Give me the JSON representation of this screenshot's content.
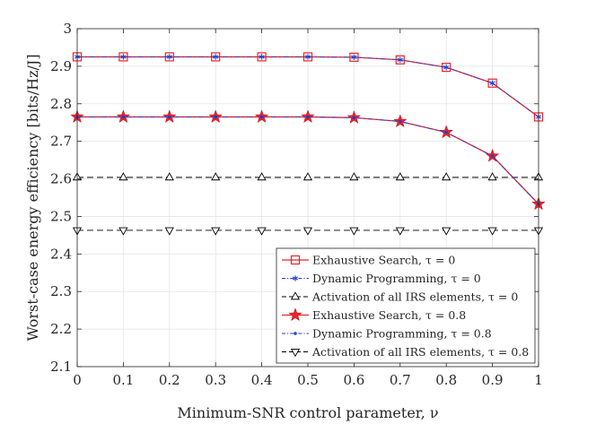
{
  "chart_data": {
    "type": "line",
    "title": "",
    "xlabel": "Minimum-SNR control parameter, ν",
    "ylabel": "Worst-case energy efficiency [bits/Hz/J]",
    "xlim": [
      0,
      1
    ],
    "ylim": [
      2.1,
      3.0
    ],
    "x_ticks": [
      0,
      0.1,
      0.2,
      0.3,
      0.4,
      0.5,
      0.6,
      0.7,
      0.8,
      0.9,
      1
    ],
    "x_tick_labels": [
      "0",
      "0.1",
      "0.2",
      "0.3",
      "0.4",
      "0.5",
      "0.6",
      "0.7",
      "0.8",
      "0.9",
      "1"
    ],
    "y_ticks": [
      2.1,
      2.2,
      2.3,
      2.4,
      2.5,
      2.6,
      2.7,
      2.8,
      2.9,
      3.0
    ],
    "y_tick_labels": [
      "2.1",
      "2.2",
      "2.3",
      "2.4",
      "2.5",
      "2.6",
      "2.7",
      "2.8",
      "2.9",
      "3"
    ],
    "grid": true,
    "legend_position": "bottom-right",
    "x": [
      0,
      0.1,
      0.2,
      0.3,
      0.4,
      0.5,
      0.6,
      0.7,
      0.8,
      0.9,
      1
    ],
    "series": [
      {
        "name": "Exhaustive Search, τ = 0",
        "values": [
          2.925,
          2.925,
          2.925,
          2.925,
          2.925,
          2.925,
          2.924,
          2.917,
          2.897,
          2.855,
          2.765
        ],
        "color": "#e8232a",
        "marker": "square",
        "dash": "solid"
      },
      {
        "name": "Dynamic Programming, τ = 0",
        "values": [
          2.925,
          2.925,
          2.925,
          2.925,
          2.925,
          2.925,
          2.924,
          2.917,
          2.897,
          2.855,
          2.765
        ],
        "color": "#1f3fd6",
        "marker": "asterisk",
        "dash": "dashdot"
      },
      {
        "name": "Activation of all IRS elements, τ = 0",
        "values": [
          2.604,
          2.604,
          2.604,
          2.604,
          2.604,
          2.604,
          2.604,
          2.604,
          2.604,
          2.604,
          2.604
        ],
        "color": "#000000",
        "marker": "triangle-up",
        "dash": "dashed"
      },
      {
        "name": "Exhaustive Search, τ = 0.8",
        "values": [
          2.765,
          2.765,
          2.765,
          2.765,
          2.765,
          2.765,
          2.763,
          2.753,
          2.724,
          2.661,
          2.533
        ],
        "color": "#e8232a",
        "marker": "star",
        "dash": "solid"
      },
      {
        "name": "Dynamic Programming, τ = 0.8",
        "values": [
          2.765,
          2.765,
          2.765,
          2.765,
          2.765,
          2.765,
          2.763,
          2.753,
          2.724,
          2.661,
          2.533
        ],
        "color": "#1f3fd6",
        "marker": "dot",
        "dash": "dashdot"
      },
      {
        "name": "Activation of all IRS elements, τ = 0.8",
        "values": [
          2.463,
          2.463,
          2.463,
          2.463,
          2.463,
          2.463,
          2.463,
          2.463,
          2.463,
          2.463,
          2.463
        ],
        "color": "#000000",
        "marker": "triangle-down",
        "dash": "dashed"
      }
    ]
  }
}
